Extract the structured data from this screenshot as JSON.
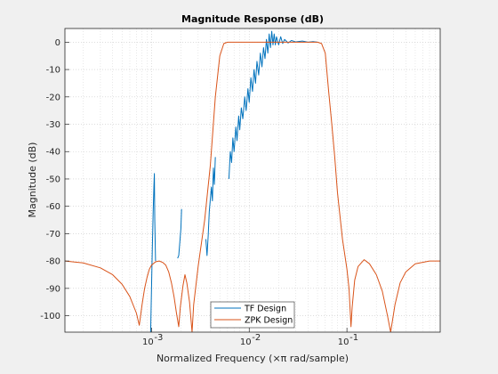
{
  "chart_data": {
    "type": "line",
    "title": "Magnitude Response (dB)",
    "xlabel": "Normalized Frequency (×π rad/sample)",
    "ylabel": "Magnitude (dB)",
    "xscale": "log",
    "xlim": [
      0.00013,
      0.9
    ],
    "ylim": [
      -106,
      5
    ],
    "yticks": [
      0,
      -10,
      -20,
      -30,
      -40,
      -50,
      -60,
      -70,
      -80,
      -90,
      -100
    ],
    "xticks": [
      {
        "value": 0.001,
        "label_base": "10",
        "label_exp": "-3"
      },
      {
        "value": 0.01,
        "label_base": "10",
        "label_exp": "-2"
      },
      {
        "value": 0.1,
        "label_base": "10",
        "label_exp": "-1"
      }
    ],
    "grid": true,
    "minor_grid": true,
    "legend_position": "bottom-center",
    "series": [
      {
        "name": "TF Design",
        "color": "#0072bd",
        "segments": [
          [
            [
              0.00098,
              -106
            ],
            [
              0.001,
              -90
            ],
            [
              0.00102,
              -75
            ],
            [
              0.00104,
              -62
            ],
            [
              0.00106,
              -52
            ],
            [
              0.00107,
              -48
            ],
            [
              0.00108,
              -65
            ],
            [
              0.0011,
              -80
            ]
          ],
          [
            [
              0.00185,
              -79
            ],
            [
              0.0019,
              -78
            ],
            [
              0.00195,
              -73
            ],
            [
              0.002,
              -68
            ],
            [
              0.00203,
              -61
            ]
          ],
          [
            [
              0.0036,
              -72
            ],
            [
              0.0037,
              -78
            ],
            [
              0.0038,
              -71
            ],
            [
              0.0039,
              -62
            ],
            [
              0.0041,
              -53
            ],
            [
              0.0042,
              -58
            ],
            [
              0.0043,
              -46
            ],
            [
              0.0044,
              -52
            ],
            [
              0.0045,
              -42
            ]
          ],
          [
            [
              0.0062,
              -50
            ],
            [
              0.0064,
              -40
            ],
            [
              0.0066,
              -44
            ],
            [
              0.0068,
              -35
            ],
            [
              0.007,
              -40
            ],
            [
              0.0073,
              -31
            ],
            [
              0.0075,
              -36
            ],
            [
              0.0078,
              -27
            ],
            [
              0.008,
              -32
            ],
            [
              0.0083,
              -24
            ],
            [
              0.0086,
              -28
            ],
            [
              0.009,
              -20
            ],
            [
              0.0093,
              -25
            ],
            [
              0.0097,
              -17
            ],
            [
              0.01,
              -22
            ],
            [
              0.0104,
              -13
            ],
            [
              0.0108,
              -18
            ],
            [
              0.0112,
              -10
            ],
            [
              0.0116,
              -15
            ],
            [
              0.012,
              -7
            ],
            [
              0.0125,
              -12
            ],
            [
              0.013,
              -4
            ],
            [
              0.0135,
              -9
            ],
            [
              0.014,
              -2
            ],
            [
              0.0145,
              -6
            ],
            [
              0.015,
              1
            ],
            [
              0.0155,
              -4
            ],
            [
              0.016,
              3
            ],
            [
              0.0165,
              -2
            ],
            [
              0.017,
              4
            ],
            [
              0.0175,
              -1
            ],
            [
              0.018,
              3
            ],
            [
              0.0185,
              -1
            ],
            [
              0.019,
              2
            ],
            [
              0.02,
              -1
            ],
            [
              0.021,
              2
            ],
            [
              0.022,
              -0.5
            ],
            [
              0.023,
              1
            ],
            [
              0.025,
              -0.3
            ],
            [
              0.027,
              0.6
            ],
            [
              0.03,
              0.1
            ],
            [
              0.035,
              0.4
            ],
            [
              0.04,
              0
            ],
            [
              0.045,
              0.2
            ],
            [
              0.05,
              0
            ]
          ]
        ]
      },
      {
        "name": "ZPK Design",
        "color": "#d95319",
        "segments": [
          [
            [
              0.00013,
              -80
            ],
            [
              0.0002,
              -80.7
            ],
            [
              0.0003,
              -82.5
            ],
            [
              0.0004,
              -85
            ],
            [
              0.0005,
              -88.5
            ],
            [
              0.0006,
              -93
            ],
            [
              0.0007,
              -99
            ],
            [
              0.00075,
              -103.5
            ],
            [
              0.0008,
              -96
            ],
            [
              0.00085,
              -90
            ],
            [
              0.0009,
              -86
            ],
            [
              0.00095,
              -83
            ],
            [
              0.001,
              -81.5
            ],
            [
              0.0011,
              -80.3
            ],
            [
              0.0012,
              -80
            ],
            [
              0.0013,
              -80.5
            ],
            [
              0.0014,
              -81.5
            ],
            [
              0.0015,
              -84
            ],
            [
              0.0016,
              -88
            ],
            [
              0.0017,
              -93
            ],
            [
              0.0018,
              -99
            ],
            [
              0.0019,
              -104
            ],
            [
              0.00197,
              -97
            ],
            [
              0.0021,
              -89
            ],
            [
              0.0022,
              -85
            ],
            [
              0.0023,
              -88
            ],
            [
              0.00245,
              -95
            ],
            [
              0.0026,
              -106
            ],
            [
              0.0027,
              -96
            ],
            [
              0.003,
              -82
            ],
            [
              0.0035,
              -65
            ],
            [
              0.004,
              -45
            ],
            [
              0.0045,
              -20
            ],
            [
              0.005,
              -5
            ],
            [
              0.0055,
              -0.5
            ],
            [
              0.006,
              0
            ],
            [
              0.01,
              0
            ],
            [
              0.02,
              0
            ],
            [
              0.05,
              0
            ],
            [
              0.055,
              -0.5
            ],
            [
              0.06,
              -4
            ],
            [
              0.065,
              -18
            ],
            [
              0.07,
              -30
            ],
            [
              0.075,
              -42
            ],
            [
              0.08,
              -55
            ],
            [
              0.09,
              -72
            ],
            [
              0.1,
              -83
            ],
            [
              0.105,
              -90
            ],
            [
              0.11,
              -104
            ],
            [
              0.113,
              -97
            ],
            [
              0.12,
              -87
            ],
            [
              0.13,
              -82
            ],
            [
              0.15,
              -79.5
            ],
            [
              0.17,
              -81
            ],
            [
              0.2,
              -85
            ],
            [
              0.23,
              -91
            ],
            [
              0.26,
              -100
            ],
            [
              0.28,
              -106
            ],
            [
              0.31,
              -96
            ],
            [
              0.35,
              -88
            ],
            [
              0.4,
              -84
            ],
            [
              0.5,
              -81
            ],
            [
              0.7,
              -80
            ],
            [
              0.9,
              -80
            ]
          ]
        ]
      }
    ]
  }
}
